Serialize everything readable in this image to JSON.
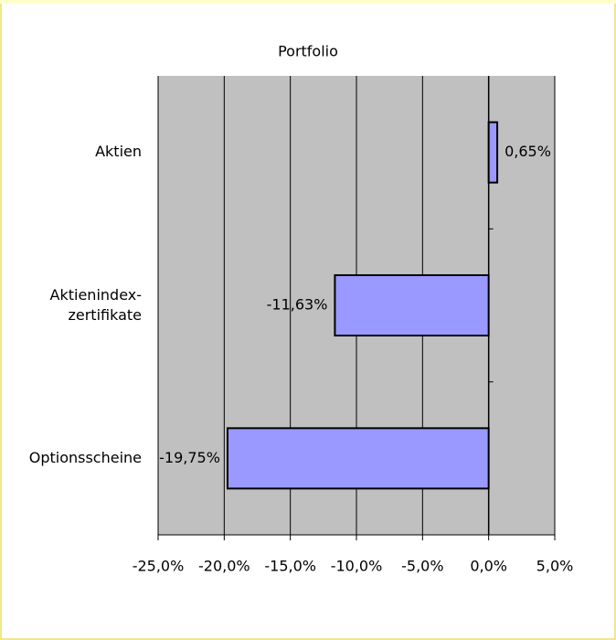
{
  "chart_data": {
    "type": "bar",
    "orientation": "horizontal",
    "title": "Portfolio",
    "categories": [
      "Aktien",
      "Aktienindex-\nzertifikate",
      "Optionsscheine"
    ],
    "values": [
      0.65,
      -11.63,
      -19.75
    ],
    "value_labels": [
      "0,65%",
      "-11,63%",
      "-19,75%"
    ],
    "color": "#9999ff",
    "xlim": [
      -25,
      5
    ],
    "xticks": [
      {
        "value": -25,
        "label": "-25,0%"
      },
      {
        "value": -20,
        "label": "-20,0%"
      },
      {
        "value": -15,
        "label": "-15,0%"
      },
      {
        "value": -10,
        "label": "-10,0%"
      },
      {
        "value": -5,
        "label": "-5,0%"
      },
      {
        "value": 0,
        "label": "0,0%"
      },
      {
        "value": 5,
        "label": "5,0%"
      }
    ],
    "grid": true
  }
}
